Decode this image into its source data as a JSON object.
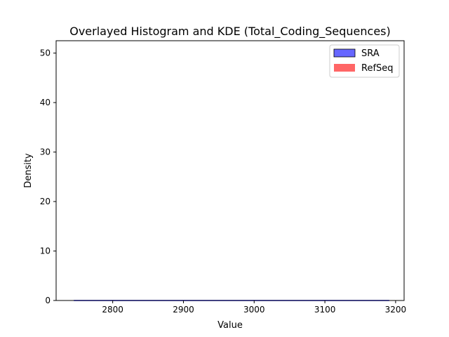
{
  "chart_data": {
    "type": "histogram",
    "title": "Overlayed Histogram and KDE (Total_Coding_Sequences)",
    "xlabel": "Value",
    "ylabel": "Density",
    "xlim": [
      2720,
      3212
    ],
    "ylim": [
      0,
      52.5
    ],
    "x_ticks": [
      2800,
      2900,
      3000,
      3100,
      3200
    ],
    "y_ticks": [
      0,
      10,
      20,
      30,
      40,
      50
    ],
    "grid": false,
    "legend_position": "top-right",
    "series": [
      {
        "name": "SRA",
        "kind": "histogram+kde",
        "color": "#0000ff",
        "edge_color": "#000000",
        "alpha": 0.6,
        "kde": {
          "x": [
            2745,
            3191
          ],
          "y": [
            0,
            0
          ]
        }
      },
      {
        "name": "RefSeq",
        "kind": "histogram+kde",
        "color": "#ff0000",
        "alpha": 0.6,
        "kde": {
          "x": [],
          "y": []
        }
      }
    ]
  }
}
